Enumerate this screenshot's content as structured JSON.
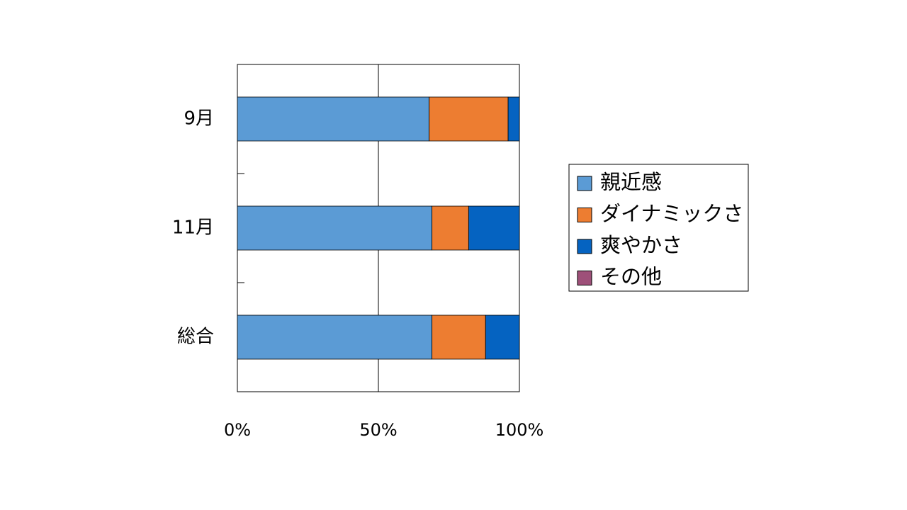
{
  "chart_data": {
    "type": "stacked_barh",
    "categories": [
      "9月",
      "11月",
      "総合"
    ],
    "series": [
      {
        "name": "親近感",
        "color": "#5b9bd5",
        "values": [
          68,
          69,
          69
        ]
      },
      {
        "name": "ダイナミックさ",
        "color": "#ed7d31",
        "values": [
          28,
          13,
          19
        ]
      },
      {
        "name": "爽やかさ",
        "color": "#0563c1",
        "values": [
          4,
          18,
          12
        ]
      },
      {
        "name": "その他",
        "color": "#9e5079",
        "values": [
          0,
          0,
          0
        ]
      }
    ],
    "xlim": [
      0,
      100
    ],
    "xticks": [
      {
        "value": 0,
        "label": "0%"
      },
      {
        "value": 50,
        "label": "50%"
      },
      {
        "value": 100,
        "label": "100%"
      }
    ],
    "grid": true,
    "legend_position": "right"
  }
}
